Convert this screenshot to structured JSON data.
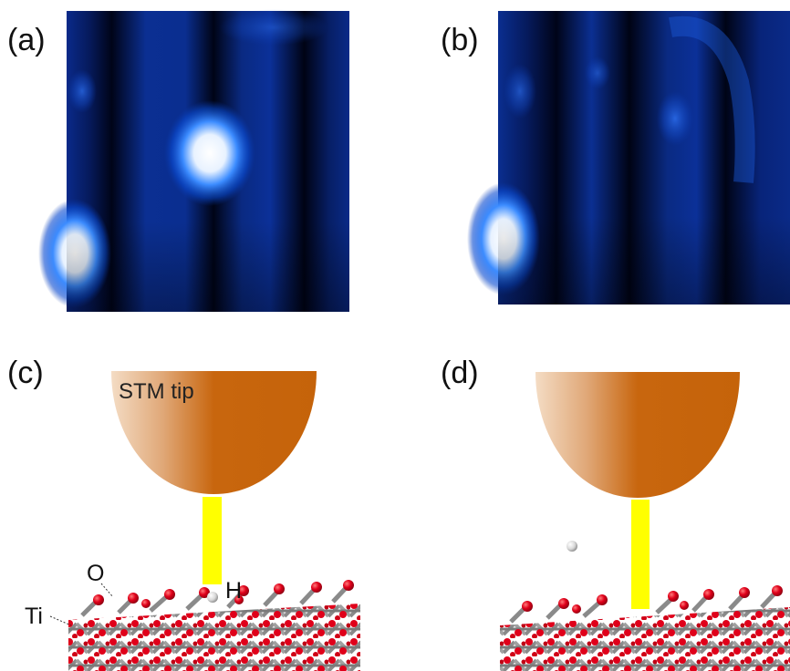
{
  "panels": {
    "a": {
      "label": "(a)"
    },
    "b": {
      "label": "(b)"
    },
    "c": {
      "label": "(c)",
      "tip_label": "STM tip",
      "atom_labels": {
        "o": "O",
        "h": "H",
        "ti": "Ti"
      }
    },
    "d": {
      "label": "(d)"
    }
  },
  "colors": {
    "stm_background": "#00041a",
    "stm_blue": "#0a5ad8",
    "stm_bright": "#ffffff",
    "tip_orange": "#c8640a",
    "tip_light": "#f2dcc6",
    "current_yellow": "#ffff00",
    "oxygen_red": "#e0001a",
    "titanium_gray": "#9a9a9a",
    "hydrogen_white": "#e6e6e6"
  }
}
